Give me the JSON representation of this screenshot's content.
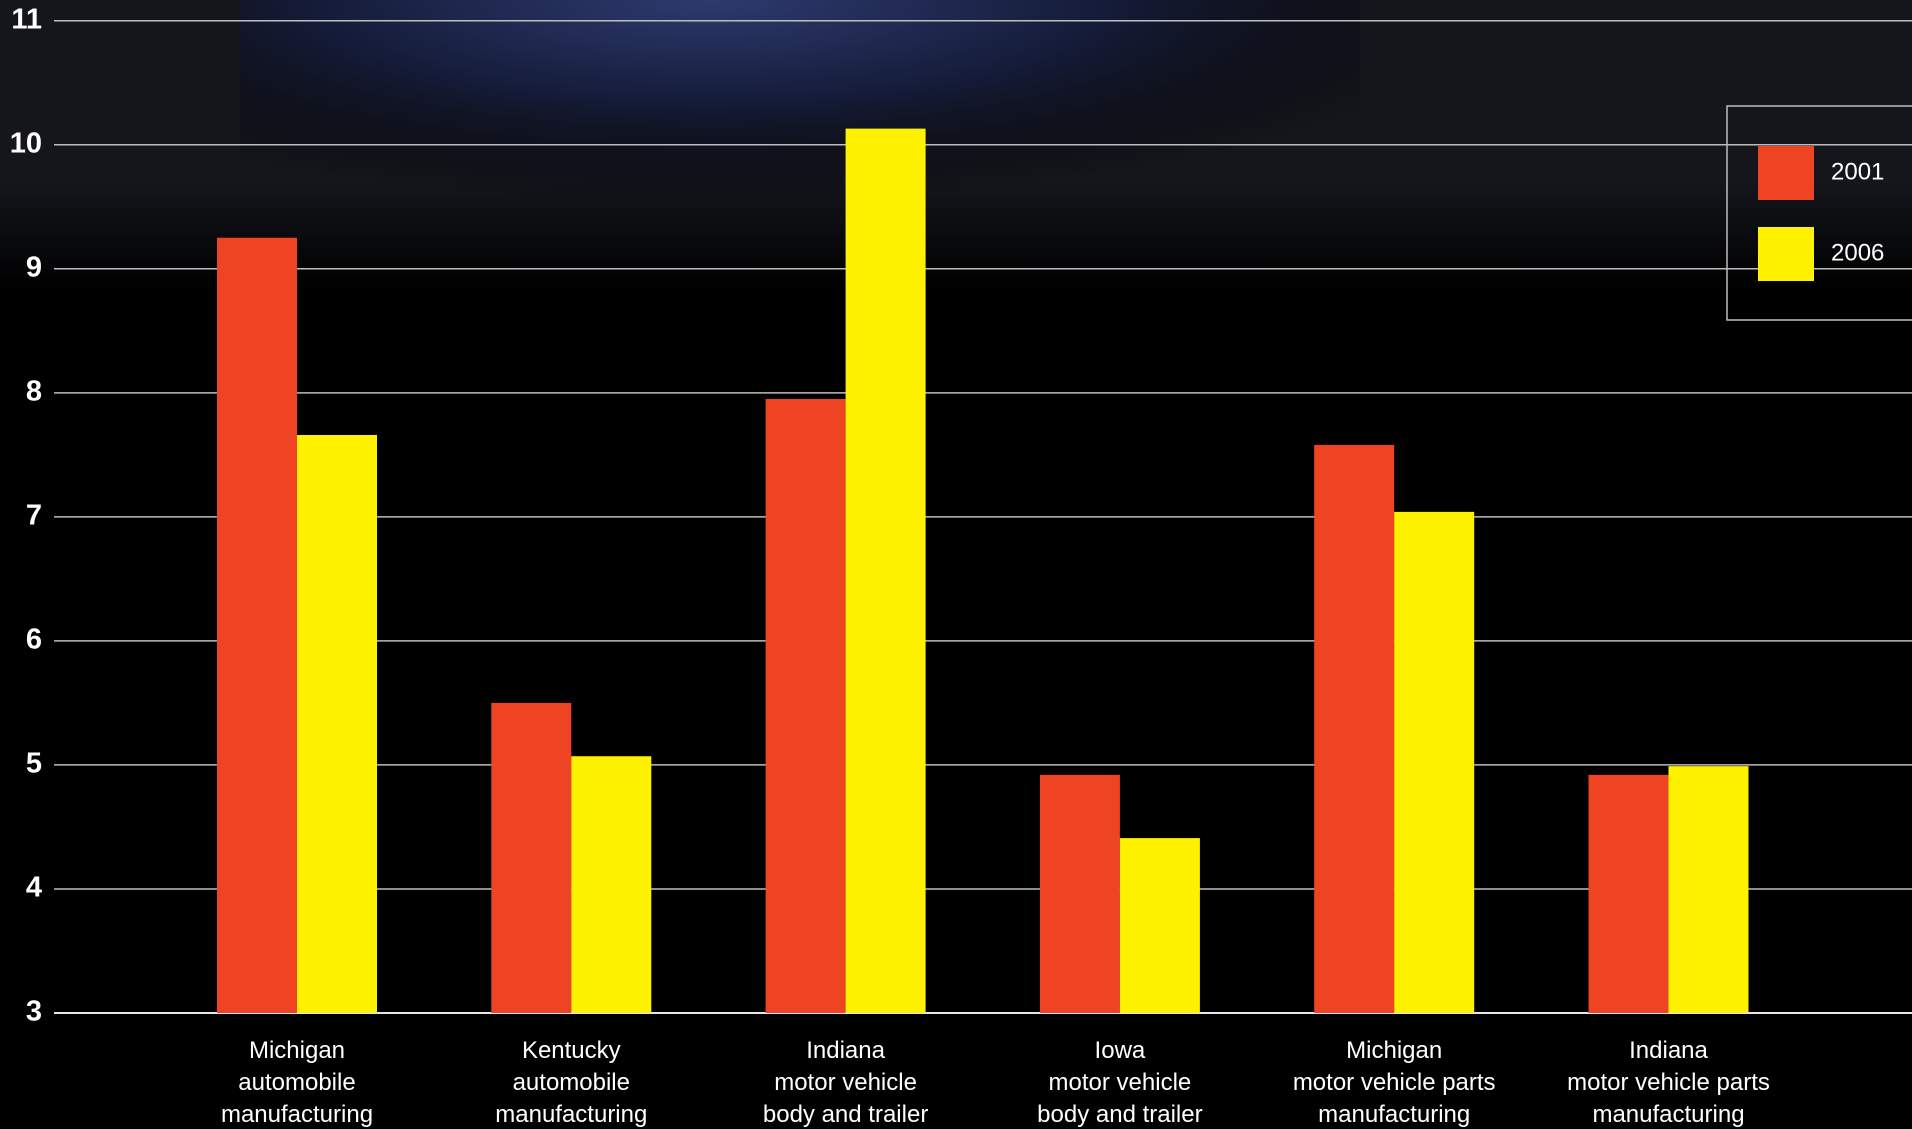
{
  "chart_data": {
    "type": "bar",
    "categories": [
      [
        "Michigan",
        "automobile",
        "manufacturing"
      ],
      [
        "Kentucky",
        "automobile",
        "manufacturing"
      ],
      [
        "Indiana",
        "motor vehicle",
        "body and trailer"
      ],
      [
        "Iowa",
        "motor vehicle",
        "body and trailer"
      ],
      [
        "Michigan",
        "motor vehicle parts",
        "manufacturing"
      ],
      [
        "Indiana",
        "motor vehicle parts",
        "manufacturing"
      ]
    ],
    "series": [
      {
        "name": "2001",
        "color": "#ee4423",
        "values": [
          9.25,
          5.5,
          7.95,
          4.92,
          7.58,
          4.92
        ]
      },
      {
        "name": "2006",
        "color": "#fff200",
        "values": [
          7.66,
          5.07,
          10.13,
          4.41,
          7.04,
          4.99
        ]
      }
    ],
    "ylim": [
      3,
      11
    ],
    "yticks": [
      3,
      4,
      5,
      6,
      7,
      8,
      9,
      10,
      11
    ],
    "grid": true,
    "legend": "upper right"
  }
}
